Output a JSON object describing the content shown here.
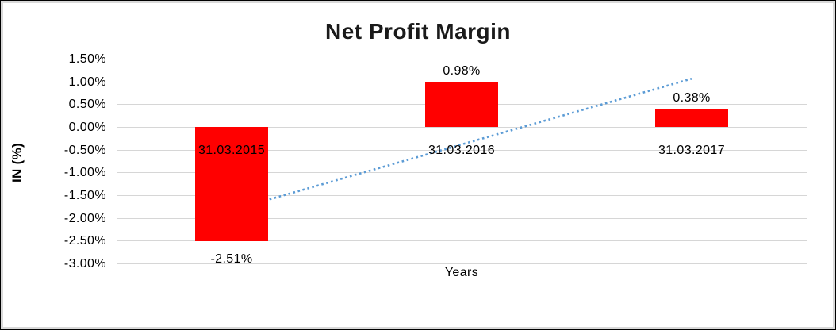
{
  "chart_data": {
    "type": "bar",
    "title": "Net Profit Margin",
    "xlabel": "Years",
    "ylabel": "IN (%)",
    "categories": [
      "31.03.2015",
      "31.03.2016",
      "31.03.2017"
    ],
    "values": [
      -2.51,
      0.98,
      0.38
    ],
    "data_labels": [
      "-2.51%",
      "0.98%",
      "0.38%"
    ],
    "ytick_values": [
      1.5,
      1.0,
      0.5,
      0.0,
      -0.5,
      -1.0,
      -1.5,
      -2.0,
      -2.5,
      -3.0
    ],
    "ytick_labels": [
      "1.50%",
      "1.00%",
      "0.50%",
      "0.00%",
      "-0.50%",
      "-1.00%",
      "-1.50%",
      "-2.00%",
      "-2.50%",
      "-3.00%"
    ],
    "ylim": [
      -3.0,
      1.5
    ],
    "grid": true,
    "legend_position": "none",
    "colors": {
      "bar": "#ff0000",
      "gridline": "#d6d6d6",
      "trendline": "#5b9bd5",
      "text": "#000000",
      "title_text": "#1a1a1a",
      "frame_border": "#d9d9d9"
    },
    "trendline": {
      "type": "linear",
      "style": "dotted",
      "start_value": -1.83,
      "end_value": 1.06
    }
  }
}
